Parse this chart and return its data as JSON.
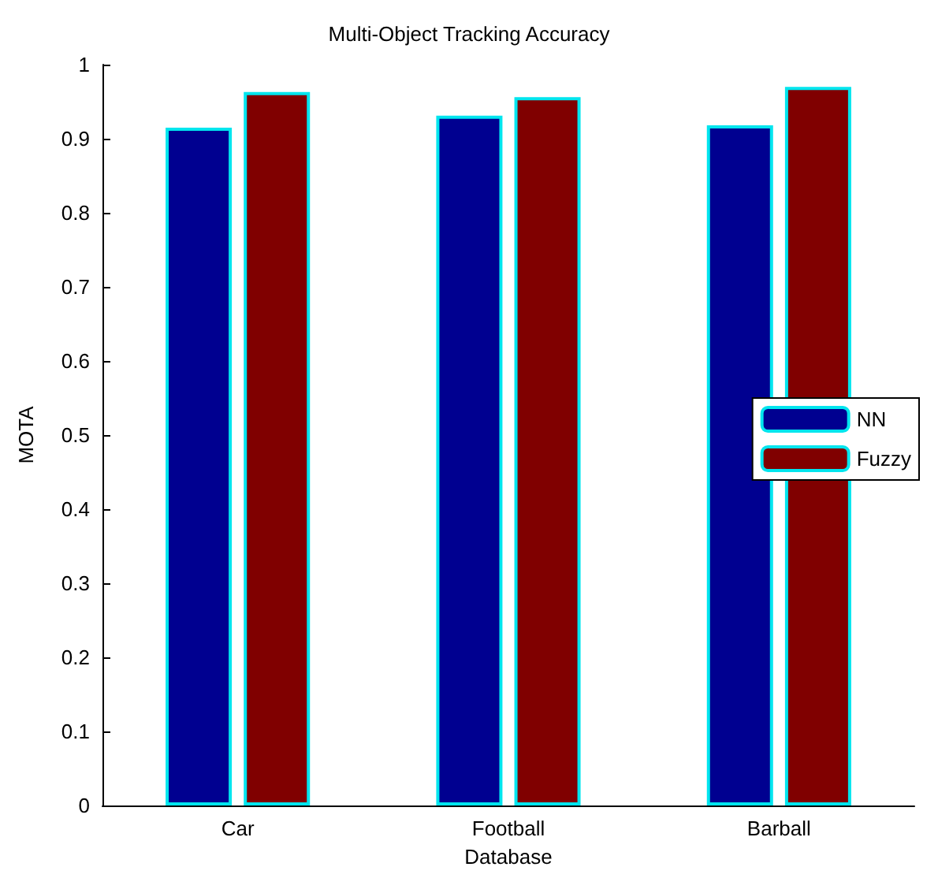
{
  "chart_data": {
    "type": "bar",
    "title": "Multi-Object Tracking Accuracy",
    "xlabel": "Database",
    "ylabel": "MOTA",
    "categories": [
      "Car",
      "Football",
      "Barball"
    ],
    "series": [
      {
        "name": "NN",
        "color": "#000090",
        "values": [
          0.915,
          0.931,
          0.918
        ]
      },
      {
        "name": "Fuzzy",
        "color": "#800000",
        "values": [
          0.963,
          0.956,
          0.97
        ]
      }
    ],
    "ylim": [
      0,
      1
    ],
    "yticks": [
      0,
      0.1,
      0.2,
      0.3,
      0.4,
      0.5,
      0.6,
      0.7,
      0.8,
      0.9,
      1
    ],
    "grid": false,
    "legend": "right"
  }
}
